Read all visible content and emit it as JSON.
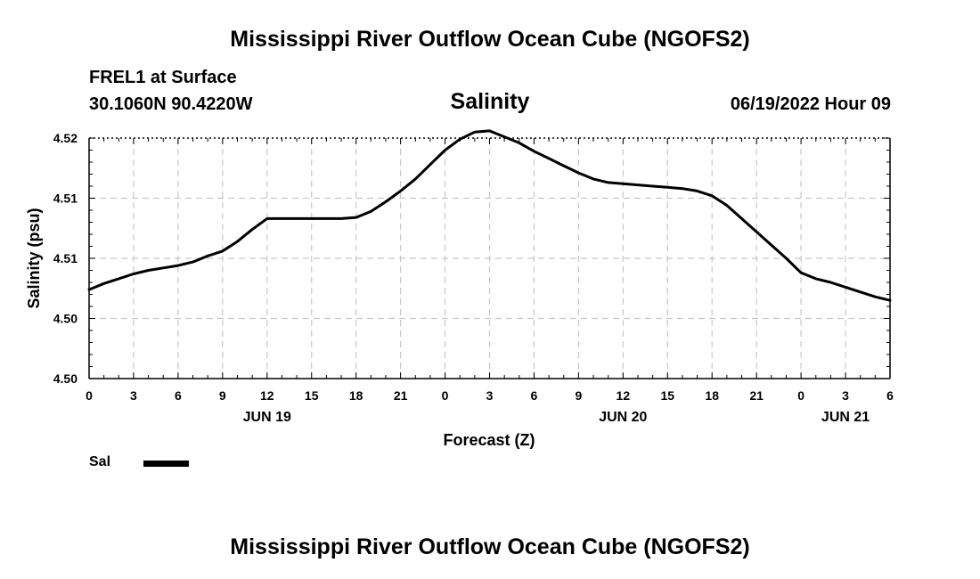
{
  "header": {
    "title": "Mississippi River Outflow Ocean Cube (NGOFS2)",
    "station": "FREL1 at Surface",
    "coords": "30.1060N  90.4220W",
    "valid_time": "06/19/2022 Hour 09"
  },
  "footer": {
    "title": "Mississippi River Outflow Ocean Cube (NGOFS2)"
  },
  "chart_data": {
    "type": "line",
    "title": "Salinity",
    "xlabel": "Forecast (Z)",
    "ylabel": "Salinity (psu)",
    "xlim": [
      0,
      54
    ],
    "ylim": [
      4.5,
      4.52
    ],
    "grid": true,
    "x_tick_hours": [
      0,
      3,
      6,
      9,
      12,
      15,
      18,
      21,
      24,
      27,
      30,
      33,
      36,
      39,
      42,
      45,
      48,
      51,
      54
    ],
    "x_tick_labels": [
      "0",
      "3",
      "6",
      "9",
      "12",
      "15",
      "18",
      "21",
      "0",
      "3",
      "6",
      "9",
      "12",
      "15",
      "18",
      "21",
      "0",
      "3",
      "6"
    ],
    "day_labels": [
      {
        "hour": 12,
        "label": "JUN 19"
      },
      {
        "hour": 36,
        "label": "JUN 20"
      },
      {
        "hour": 51,
        "label": "JUN 21"
      }
    ],
    "y_ticks": [
      4.5,
      4.505,
      4.51,
      4.515,
      4.52
    ],
    "y_tick_labels": [
      "4.50",
      "4.50",
      "4.51",
      "4.51",
      "4.52"
    ],
    "legend": {
      "label": "Sal",
      "position": "bottom-left"
    },
    "series": [
      {
        "name": "Sal",
        "x": [
          0,
          1,
          2,
          3,
          4,
          5,
          6,
          7,
          8,
          9,
          10,
          11,
          12,
          13,
          14,
          15,
          16,
          17,
          18,
          19,
          20,
          21,
          22,
          23,
          24,
          25,
          26,
          27,
          28,
          29,
          30,
          31,
          32,
          33,
          34,
          35,
          36,
          37,
          38,
          39,
          40,
          41,
          42,
          43,
          44,
          45,
          46,
          47,
          48,
          49,
          50,
          51,
          52,
          53,
          54
        ],
        "values": [
          4.5074,
          4.5079,
          4.5083,
          4.5087,
          4.509,
          4.5092,
          4.5094,
          4.5097,
          4.5102,
          4.5106,
          4.5114,
          4.5124,
          4.5133,
          4.5133,
          4.5133,
          4.5133,
          4.5133,
          4.5133,
          4.5134,
          4.5139,
          4.5147,
          4.5156,
          4.5166,
          4.5178,
          4.519,
          4.5199,
          4.5205,
          4.5206,
          4.5201,
          4.5196,
          4.5189,
          4.5183,
          4.5177,
          4.5171,
          4.5166,
          4.5163,
          4.5162,
          4.5161,
          4.516,
          4.5159,
          4.5158,
          4.5156,
          4.5152,
          4.5144,
          4.5133,
          4.5122,
          4.5111,
          4.51,
          4.5088,
          4.5083,
          4.508,
          4.5076,
          4.5072,
          4.5068,
          4.5065
        ]
      }
    ]
  }
}
